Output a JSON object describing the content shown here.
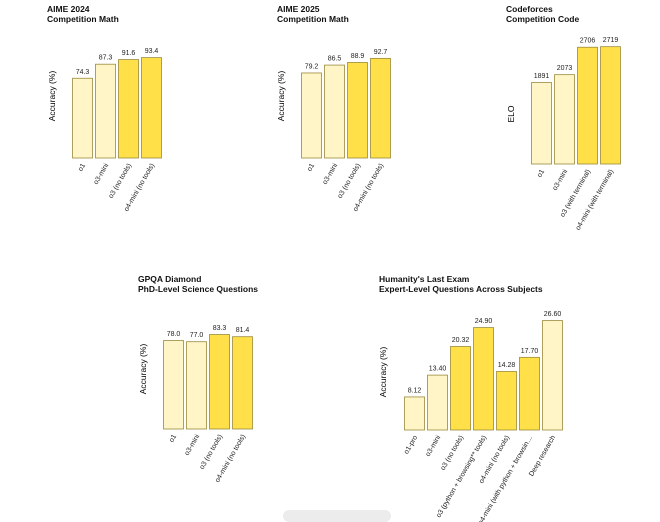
{
  "colors": {
    "light": "#FFF5C6",
    "medium": "#FFEA9A",
    "strong": "#FFE048",
    "outline": "#9A8A3A"
  },
  "chart_data": [
    {
      "type": "bar",
      "title": "AIME 2024",
      "subtitle": "Competition Math",
      "ylabel": "Accuracy (%)",
      "categories": [
        "o1",
        "o3-mini",
        "o3 (no tools)",
        "o4-mini (no tools)"
      ],
      "values": [
        74.3,
        87.3,
        91.6,
        93.4
      ],
      "value_labels": [
        "74.3",
        "87.3",
        "91.6",
        "93.4"
      ],
      "shades": [
        "light",
        "light",
        "strong",
        "strong"
      ],
      "ylim": [
        0,
        100
      ]
    },
    {
      "type": "bar",
      "title": "AIME 2025",
      "subtitle": "Competition Math",
      "ylabel": "Accuracy (%)",
      "categories": [
        "o1",
        "o3-mini",
        "o3 (no tools)",
        "o4-mini (no tools)"
      ],
      "values": [
        79.2,
        86.5,
        88.9,
        92.7
      ],
      "value_labels": [
        "79.2",
        "86.5",
        "88.9",
        "92.7"
      ],
      "shades": [
        "light",
        "light",
        "strong",
        "strong"
      ],
      "ylim": [
        0,
        100
      ]
    },
    {
      "type": "bar",
      "title": "Codeforces",
      "subtitle": "Competition Code",
      "ylabel": "ELO",
      "categories": [
        "o1",
        "o3-mini",
        "o3 (with terminal)",
        "o4-mini (with terminal)"
      ],
      "values": [
        1891,
        2073,
        2706,
        2719
      ],
      "value_labels": [
        "1891",
        "2073",
        "2706",
        "2719"
      ],
      "shades": [
        "light",
        "light",
        "strong",
        "strong"
      ],
      "ylim": [
        0,
        3000
      ]
    },
    {
      "type": "bar",
      "title": "GPQA Diamond",
      "subtitle": "PhD-Level Science Questions",
      "ylabel": "Accuracy (%)",
      "categories": [
        "o1",
        "o3-mini",
        "o3 (no tools)",
        "o4-mini (no tools)"
      ],
      "values": [
        78.0,
        77.0,
        83.3,
        81.4
      ],
      "value_labels": [
        "78.0",
        "77.0",
        "83.3",
        "81.4"
      ],
      "shades": [
        "light",
        "light",
        "strong",
        "strong"
      ],
      "ylim": [
        0,
        100
      ]
    },
    {
      "type": "bar",
      "title": "Humanity's Last Exam",
      "subtitle": "Expert-Level Questions Across Subjects",
      "ylabel": "Accuracy (%)",
      "categories": [
        "o1-pro",
        "o3-mini",
        "o3 (no tools)",
        "o3 (python + browsing** tools)",
        "o4-mini (no tools)",
        "o4-mini (with python + browsin…",
        "Deep research"
      ],
      "values": [
        8.12,
        13.4,
        20.32,
        24.9,
        14.28,
        17.7,
        26.6
      ],
      "value_labels": [
        "8.12",
        "13.40",
        "20.32",
        "24.90",
        "14.28",
        "17.70",
        "26.60"
      ],
      "shades": [
        "light",
        "light",
        "strong",
        "strong",
        "strong",
        "strong",
        "light"
      ],
      "ylim": [
        0,
        30
      ]
    }
  ]
}
